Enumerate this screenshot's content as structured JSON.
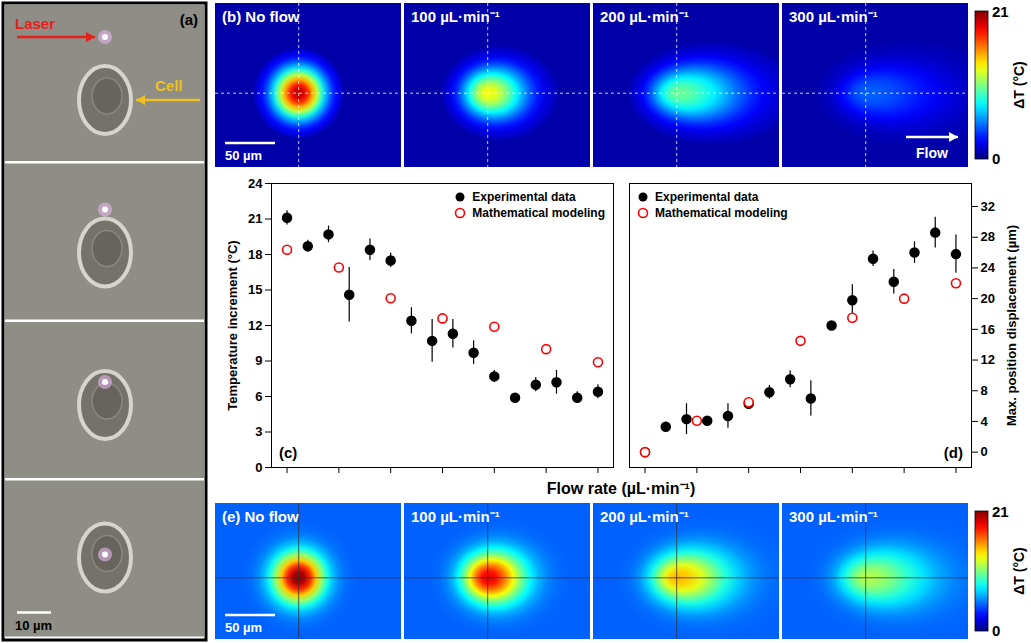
{
  "panels": {
    "a": {
      "label": "(a)",
      "annotations": {
        "laser": "Laser",
        "cell": "Cell"
      },
      "scale_bar": "10 µm"
    },
    "b": {
      "label": "(b)",
      "titles": [
        "No flow",
        "100 µL·min⁻¹",
        "200 µL·min⁻¹",
        "300 µL·min⁻¹"
      ],
      "scale_bar": "50 µm",
      "flow_label": "Flow",
      "colorbar": {
        "range": [
          0,
          21
        ],
        "ticks": [
          0,
          21
        ],
        "label": "ΔT (°C)"
      }
    },
    "e": {
      "label": "(e)",
      "titles": [
        "No flow",
        "100 µL·min⁻¹",
        "200 µL·min⁻¹",
        "300 µL·min⁻¹"
      ],
      "scale_bar": "50 µm",
      "colorbar": {
        "range": [
          0,
          21
        ],
        "ticks": [
          0,
          21
        ],
        "label": "ΔT (°C)"
      }
    }
  },
  "xlabel": "Flow rate (µL·min⁻¹)",
  "chart_data": [
    {
      "type": "scatter",
      "panel": "(c)",
      "ylabel": "Temperature increment (°C)",
      "xlim": [
        -15,
        315
      ],
      "xticks": [
        0,
        50,
        100,
        150,
        200,
        250,
        300
      ],
      "ylim": [
        0,
        24
      ],
      "yticks": [
        0,
        3,
        6,
        9,
        12,
        15,
        18,
        21,
        24
      ],
      "grid": false,
      "legend": "top-right",
      "tick_labels": "y",
      "series": [
        {
          "name": "Experimental data",
          "color": "#000000",
          "marker": "filled circle",
          "x": [
            0,
            20,
            40,
            60,
            80,
            100,
            120,
            140,
            160,
            180,
            200,
            220,
            240,
            260,
            280,
            300
          ],
          "values": [
            21.1,
            18.7,
            19.7,
            14.6,
            18.4,
            17.5,
            12.4,
            10.7,
            11.3,
            9.7,
            7.7,
            5.9,
            7.0,
            7.2,
            5.9,
            6.4
          ],
          "error": [
            0.6,
            0.5,
            0.7,
            2.3,
            0.9,
            0.6,
            1.1,
            1.8,
            1.2,
            1.0,
            0.5,
            0.2,
            0.6,
            1.0,
            0.5,
            0.6
          ]
        },
        {
          "name": "Mathematical modeling",
          "color": "#ff0000",
          "marker": "open circle",
          "x": [
            0,
            50,
            100,
            150,
            200,
            250,
            300
          ],
          "values": [
            18.4,
            16.9,
            14.3,
            12.6,
            11.9,
            10.0,
            8.9
          ]
        }
      ]
    },
    {
      "type": "scatter",
      "panel": "(d)",
      "ylabel": "Max. position displacement (µm)",
      "xlim": [
        -15,
        315
      ],
      "xticks": [
        0,
        50,
        100,
        150,
        200,
        250,
        300
      ],
      "ylim": [
        -2,
        35
      ],
      "yticks": [
        0,
        4,
        8,
        12,
        16,
        20,
        24,
        28,
        32
      ],
      "grid": false,
      "legend": "top-left",
      "tick_labels": "y",
      "series": [
        {
          "name": "Experimental data",
          "color": "#000000",
          "marker": "filled circle",
          "x": [
            0,
            20,
            40,
            60,
            80,
            100,
            120,
            140,
            160,
            180,
            200,
            220,
            240,
            260,
            280,
            300
          ],
          "values": [
            0,
            3.3,
            4.3,
            4.1,
            4.7,
            6.3,
            7.8,
            9.5,
            7.0,
            16.5,
            19.8,
            25.2,
            22.2,
            26.0,
            28.6,
            25.8
          ],
          "error": [
            0.2,
            0.6,
            2.0,
            0.3,
            1.6,
            0.4,
            0.9,
            1.1,
            2.3,
            0.4,
            2.0,
            1.0,
            1.6,
            1.4,
            2.0,
            2.5
          ]
        },
        {
          "name": "Mathematical modeling",
          "color": "#ff0000",
          "marker": "open circle",
          "x": [
            0,
            50,
            100,
            150,
            200,
            250,
            300
          ],
          "values": [
            0,
            4.1,
            6.5,
            14.5,
            17.5,
            20.0,
            22.0
          ]
        }
      ]
    }
  ]
}
